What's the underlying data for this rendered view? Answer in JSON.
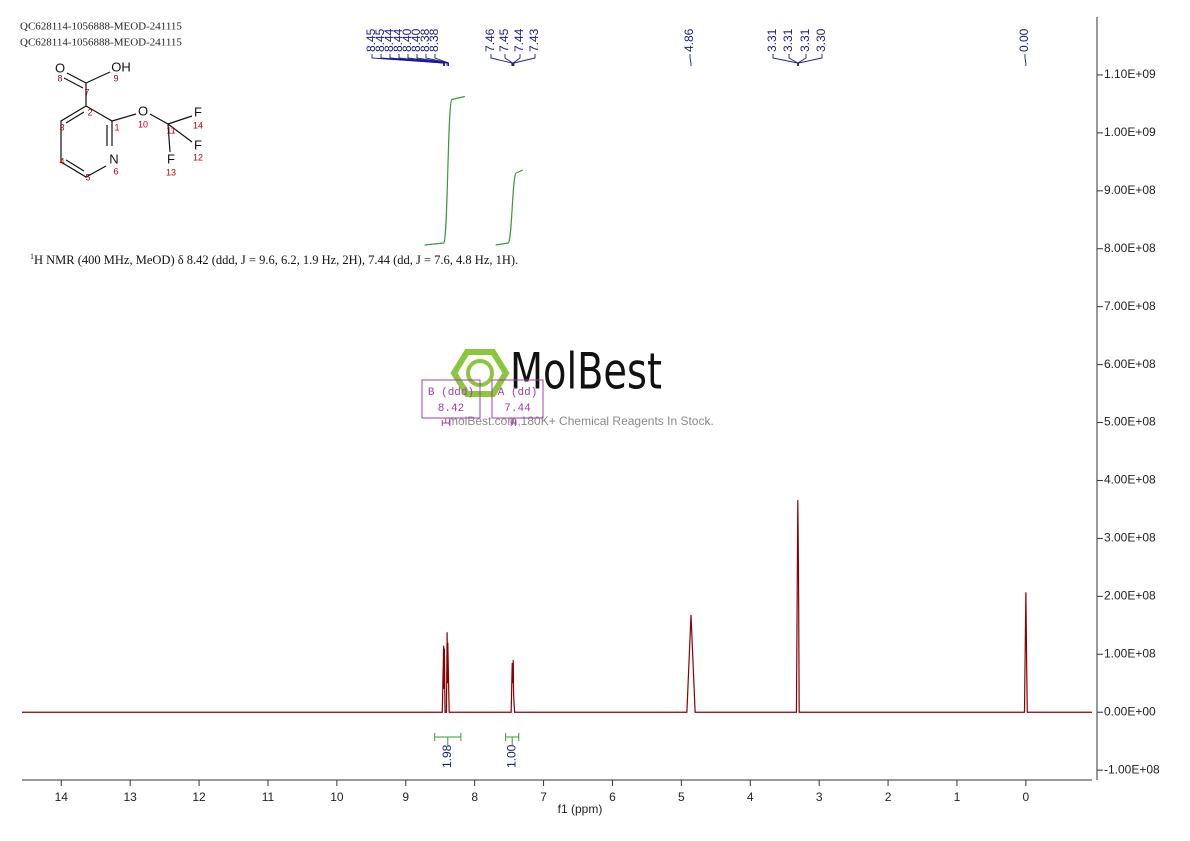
{
  "header": {
    "lines": [
      "QC628114-1056888-MEOD-241115",
      "QC628114-1056888-MEOD-241115"
    ]
  },
  "structure": {
    "atoms": [
      "O",
      "OH",
      "O",
      "F",
      "F",
      "N",
      "F"
    ],
    "numbers": [
      "1",
      "2",
      "3",
      "4",
      "5",
      "6",
      "7",
      "8",
      "9",
      "10",
      "11",
      "12",
      "13",
      "14"
    ]
  },
  "description": {
    "superscript": "1",
    "text": "H NMR (400 MHz, MeOD) δ 8.42 (ddd, J = 9.6, 6.2, 1.9 Hz, 2H), 7.44 (dd, J = 7.6, 4.8 Hz, 1H)."
  },
  "watermark": {
    "brand": "MolBest",
    "tagline": "molBest.com,180K+ Chemical Reagents In Stock."
  },
  "chart_data": {
    "type": "line",
    "xlabel": "f1 (ppm)",
    "xlim": [
      14.57,
      -0.96
    ],
    "xticks": [
      14,
      13,
      12,
      11,
      10,
      9,
      8,
      7,
      6,
      5,
      4,
      3,
      2,
      1,
      0
    ],
    "ylim": [
      -117000000,
      1200000000
    ],
    "yticks": [
      {
        "value": -100000000,
        "label": "-1.00E+08"
      },
      {
        "value": 0,
        "label": "0.00E+00"
      },
      {
        "value": 100000000,
        "label": "1.00E+08"
      },
      {
        "value": 200000000,
        "label": "2.00E+08"
      },
      {
        "value": 300000000,
        "label": "3.00E+08"
      },
      {
        "value": 400000000,
        "label": "4.00E+08"
      },
      {
        "value": 500000000,
        "label": "5.00E+08"
      },
      {
        "value": 600000000,
        "label": "6.00E+08"
      },
      {
        "value": 700000000,
        "label": "7.00E+08"
      },
      {
        "value": 800000000,
        "label": "8.00E+08"
      },
      {
        "value": 900000000,
        "label": "9.00E+08"
      },
      {
        "value": 1000000000,
        "label": "1.00E+09"
      },
      {
        "value": 1100000000,
        "label": "1.10E+09"
      }
    ],
    "x": [
      14.57,
      8.47,
      8.45,
      8.445,
      8.44,
      8.43,
      8.41,
      8.4,
      8.395,
      8.39,
      8.37,
      7.47,
      7.455,
      7.45,
      7.44,
      7.435,
      7.42,
      4.92,
      4.86,
      4.8,
      3.33,
      3.31,
      3.3,
      3.29,
      0.02,
      0,
      -0.02,
      -0.96
    ],
    "series": [
      {
        "color": "#8b0000",
        "values": [
          0,
          0,
          115000000,
          40000000,
          110000000,
          0,
          0,
          138000000,
          50000000,
          120000000,
          0,
          0,
          85000000,
          50000000,
          90000000,
          30000000,
          0,
          0,
          168000000,
          0,
          0,
          366000000,
          250000000,
          0,
          0,
          207000000,
          0,
          0
        ]
      }
    ],
    "peak_labels": [
      {
        "value": 8.45,
        "label": "8.45"
      },
      {
        "value": 8.45,
        "label": "8.45"
      },
      {
        "value": 8.44,
        "label": "8.44"
      },
      {
        "value": 8.44,
        "label": "8.44"
      },
      {
        "value": 8.4,
        "label": "8.40"
      },
      {
        "value": 8.4,
        "label": "8.40"
      },
      {
        "value": 8.38,
        "label": "8.38"
      },
      {
        "value": 8.38,
        "label": "8.38"
      },
      {
        "value": 7.46,
        "label": "7.46"
      },
      {
        "value": 7.45,
        "label": "7.45"
      },
      {
        "value": 7.44,
        "label": "7.44"
      },
      {
        "value": 7.43,
        "label": "7.43"
      },
      {
        "value": 4.86,
        "label": "4.86"
      },
      {
        "value": 3.31,
        "label": "3.31"
      },
      {
        "value": 3.31,
        "label": "3.31"
      },
      {
        "value": 3.31,
        "label": "3.31"
      },
      {
        "value": 3.3,
        "label": "3.30"
      },
      {
        "value": 0,
        "label": "0.00"
      }
    ],
    "integrals": {
      "ranges": [
        [
          8.58,
          8.2
        ],
        [
          7.55,
          7.36
        ]
      ],
      "values": [
        1.98,
        1
      ],
      "value_labels": [
        "1.98",
        "1.00"
      ]
    },
    "multiplets": [
      {
        "name": "B (ddd)",
        "shift": 8.42,
        "range": [
          8.47,
          8.36
        ]
      },
      {
        "name": "A (dd)",
        "shift": 7.44,
        "range": [
          7.47,
          7.41
        ]
      }
    ]
  }
}
